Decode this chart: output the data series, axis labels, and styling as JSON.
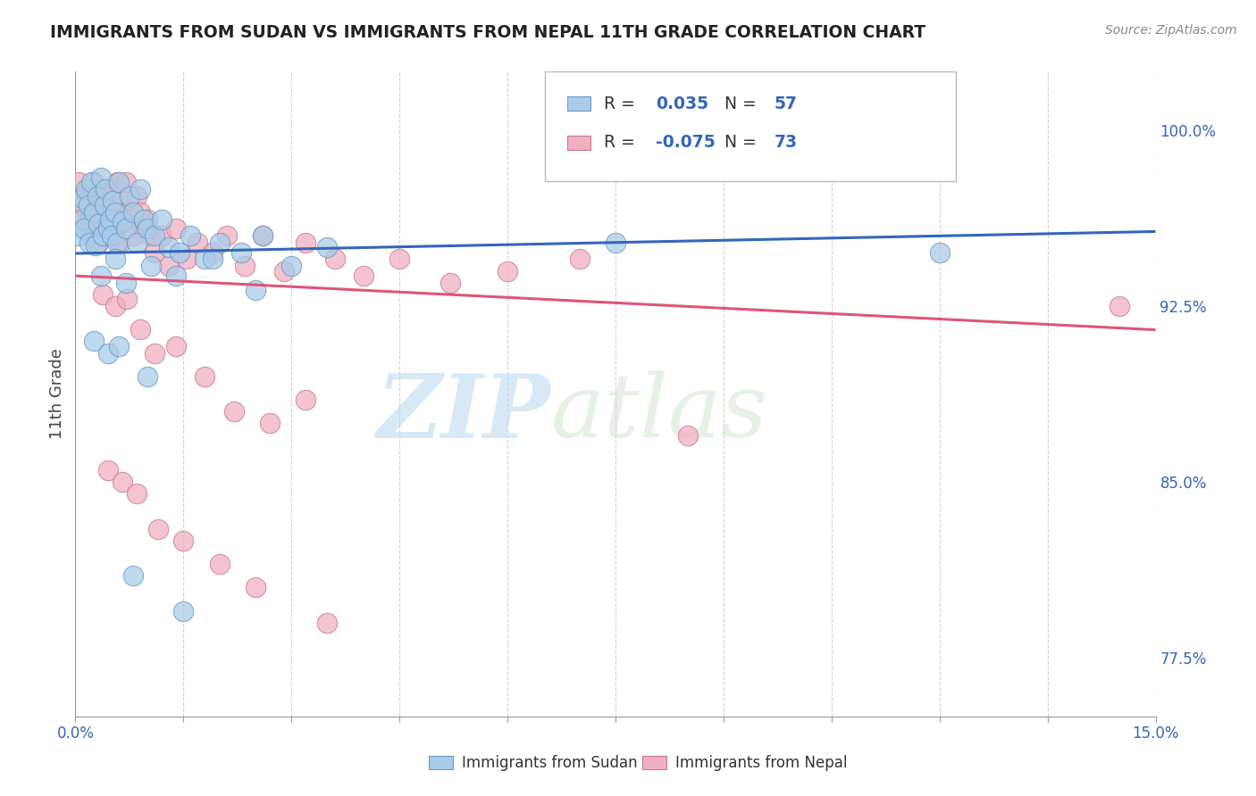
{
  "title": "IMMIGRANTS FROM SUDAN VS IMMIGRANTS FROM NEPAL 11TH GRADE CORRELATION CHART",
  "source_text": "Source: ZipAtlas.com",
  "ylabel": "11th Grade",
  "xmin": 0.0,
  "xmax": 15.0,
  "ymin": 75.0,
  "ymax": 102.5,
  "yticks": [
    77.5,
    85.0,
    92.5,
    100.0
  ],
  "ytick_labels": [
    "77.5%",
    "85.0%",
    "92.5%",
    "100.0%"
  ],
  "series_blue": {
    "label": "Immigrants from Sudan",
    "color": "#a8cce8",
    "edge_color": "#6699cc",
    "R": 0.035,
    "N": 57,
    "trend_color": "#3366bb",
    "x": [
      0.05,
      0.08,
      0.1,
      0.12,
      0.15,
      0.18,
      0.2,
      0.22,
      0.25,
      0.28,
      0.3,
      0.32,
      0.35,
      0.38,
      0.4,
      0.42,
      0.45,
      0.48,
      0.5,
      0.52,
      0.55,
      0.58,
      0.6,
      0.65,
      0.7,
      0.75,
      0.8,
      0.85,
      0.9,
      0.95,
      1.0,
      1.1,
      1.2,
      1.3,
      1.45,
      1.6,
      1.8,
      2.0,
      2.3,
      2.6,
      3.0,
      3.5,
      0.35,
      0.55,
      0.7,
      1.05,
      1.4,
      1.9,
      2.5,
      0.25,
      0.45,
      0.6,
      0.8,
      1.0,
      1.5,
      7.5,
      12.0
    ],
    "y": [
      95.5,
      96.2,
      97.1,
      95.8,
      97.5,
      96.8,
      95.2,
      97.8,
      96.5,
      95.1,
      97.2,
      96.0,
      98.0,
      95.5,
      96.8,
      97.5,
      95.8,
      96.2,
      95.5,
      97.0,
      96.5,
      95.2,
      97.8,
      96.1,
      95.8,
      97.2,
      96.5,
      95.2,
      97.5,
      96.2,
      95.8,
      95.5,
      96.2,
      95.0,
      94.8,
      95.5,
      94.5,
      95.2,
      94.8,
      95.5,
      94.2,
      95.0,
      93.8,
      94.5,
      93.5,
      94.2,
      93.8,
      94.5,
      93.2,
      91.0,
      90.5,
      90.8,
      81.0,
      89.5,
      79.5,
      95.2,
      94.8
    ]
  },
  "series_pink": {
    "label": "Immigrants from Nepal",
    "color": "#f0b0c0",
    "edge_color": "#cc7788",
    "R": -0.075,
    "N": 73,
    "trend_color": "#dd5577",
    "x": [
      0.03,
      0.05,
      0.07,
      0.1,
      0.12,
      0.15,
      0.18,
      0.2,
      0.22,
      0.25,
      0.28,
      0.3,
      0.32,
      0.35,
      0.38,
      0.4,
      0.42,
      0.45,
      0.48,
      0.5,
      0.52,
      0.55,
      0.58,
      0.6,
      0.62,
      0.65,
      0.68,
      0.7,
      0.75,
      0.8,
      0.85,
      0.9,
      0.95,
      1.0,
      1.05,
      1.1,
      1.2,
      1.3,
      1.4,
      1.55,
      1.7,
      1.9,
      2.1,
      2.35,
      2.6,
      2.9,
      3.2,
      3.6,
      4.0,
      4.5,
      5.2,
      6.0,
      7.0,
      0.38,
      0.55,
      0.72,
      0.9,
      1.1,
      1.4,
      1.8,
      2.2,
      2.7,
      3.2,
      0.45,
      0.65,
      0.85,
      1.15,
      1.5,
      2.0,
      2.5,
      3.5,
      8.5,
      14.5
    ],
    "y": [
      97.0,
      97.8,
      96.5,
      97.2,
      96.8,
      95.8,
      97.5,
      96.2,
      95.5,
      97.8,
      96.5,
      97.0,
      95.2,
      97.5,
      96.8,
      95.5,
      97.2,
      96.0,
      95.8,
      97.5,
      96.2,
      95.5,
      97.8,
      96.5,
      95.2,
      97.0,
      96.5,
      97.8,
      96.2,
      95.5,
      97.2,
      96.5,
      95.8,
      96.2,
      95.5,
      94.8,
      95.5,
      94.2,
      95.8,
      94.5,
      95.2,
      94.8,
      95.5,
      94.2,
      95.5,
      94.0,
      95.2,
      94.5,
      93.8,
      94.5,
      93.5,
      94.0,
      94.5,
      93.0,
      92.5,
      92.8,
      91.5,
      90.5,
      90.8,
      89.5,
      88.0,
      87.5,
      88.5,
      85.5,
      85.0,
      84.5,
      83.0,
      82.5,
      81.5,
      80.5,
      79.0,
      87.0,
      92.5
    ]
  },
  "watermark_zip": "ZIP",
  "watermark_atlas": "atlas",
  "background_color": "#ffffff",
  "grid_color": "#cccccc",
  "title_color": "#222222",
  "axis_label_color": "#444444",
  "tick_label_color": "#3366bb",
  "bottom_tick_color": "#888888"
}
